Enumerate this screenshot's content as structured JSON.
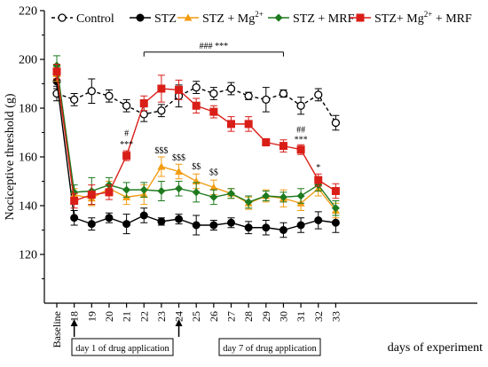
{
  "chart_data": {
    "type": "line",
    "title": "",
    "ylabel": "Nociceptive threshold (g)",
    "xlabel": "days of experiment",
    "ylim": [
      100,
      220
    ],
    "yticks": [
      120,
      140,
      160,
      180,
      200,
      220
    ],
    "categories": [
      "Baseline",
      "18",
      "19",
      "20",
      "21",
      "22",
      "23",
      "24",
      "25",
      "26",
      "27",
      "28",
      "29",
      "30",
      "31",
      "32",
      "33"
    ],
    "grid": false,
    "legend_position": "top",
    "legend": [
      {
        "name": "Control",
        "markup": "Control"
      },
      {
        "name": "STZ",
        "markup": "STZ"
      },
      {
        "name": "STZ + Mg2+",
        "markup": "STZ + Mg",
        "sup": "2+"
      },
      {
        "name": "STZ + MRF",
        "markup": "STZ + MRF"
      },
      {
        "name": "STZ+ Mg2+ + MRF",
        "markup": "STZ+ Mg",
        "sup": "2+",
        "tail": " + MRF"
      }
    ],
    "series": [
      {
        "name": "Control",
        "color": "#000000",
        "marker": "circle-open",
        "dashed": true,
        "values": [
          186,
          183.5,
          187,
          185,
          181,
          177.5,
          179,
          185,
          188.5,
          186,
          188,
          185,
          183.5,
          186,
          181,
          185.5,
          174
        ],
        "errors": [
          3,
          2.5,
          5,
          2.5,
          2.5,
          3,
          2.5,
          4.5,
          2.5,
          2.5,
          2.5,
          1.5,
          5,
          1.5,
          3.5,
          2.5,
          3
        ]
      },
      {
        "name": "STZ",
        "color": "#000000",
        "marker": "circle",
        "dashed": false,
        "values": [
          191,
          135,
          132.5,
          135,
          132.5,
          136,
          133.5,
          134.5,
          132,
          132,
          133,
          131,
          131,
          130,
          132,
          134,
          133
        ],
        "errors": [
          3,
          3,
          2.5,
          2,
          4,
          3,
          1.5,
          2,
          4,
          2,
          2,
          2.5,
          3,
          3,
          3,
          3.5,
          4
        ]
      },
      {
        "name": "STZ + Mg2+",
        "color": "#f39c12",
        "marker": "triangle",
        "dashed": false,
        "values": [
          194,
          144.5,
          143,
          147,
          143.5,
          144.5,
          156,
          154,
          150,
          147.5,
          145,
          141,
          144,
          143,
          141,
          147,
          138
        ],
        "errors": [
          3,
          2.5,
          3,
          3,
          3,
          4,
          4,
          3,
          3,
          3,
          2,
          2.5,
          2.5,
          3.5,
          3,
          3,
          3
        ]
      },
      {
        "name": "STZ + MRF",
        "color": "#1e7a1e",
        "marker": "diamond",
        "dashed": false,
        "values": [
          197.5,
          145.5,
          146,
          148.5,
          146.5,
          146.5,
          146,
          147,
          145.5,
          143.5,
          145,
          141.5,
          144,
          143.5,
          144,
          148.5,
          139
        ],
        "errors": [
          4,
          3,
          5.5,
          3,
          3,
          3,
          4,
          3,
          4,
          3,
          2,
          2.5,
          2,
          2,
          3,
          2.5,
          3
        ]
      },
      {
        "name": "STZ+ Mg2+ + MRF",
        "color": "#d91e18",
        "marker": "square",
        "dashed": false,
        "values": [
          195,
          142,
          144.5,
          145.5,
          160.5,
          182,
          188,
          187.5,
          181,
          178.5,
          173.5,
          173.5,
          166,
          164.5,
          163,
          150.5,
          146
        ],
        "errors": [
          3,
          3,
          4,
          3,
          2,
          3,
          5.5,
          4,
          3,
          2.5,
          3,
          3,
          1.5,
          2.5,
          2,
          2.5,
          3
        ]
      }
    ],
    "annotations": [
      {
        "text": "### ***",
        "type": "bracket",
        "from": "22",
        "to": "30",
        "y": 203
      },
      {
        "text": "#",
        "x": "21",
        "y": 168.5
      },
      {
        "text": "***",
        "x": "21",
        "y": 164
      },
      {
        "text": "$$$",
        "x": "23",
        "y": 161.5
      },
      {
        "text": "$$$",
        "x": "24",
        "y": 158.5
      },
      {
        "text": "$$",
        "x": "25",
        "y": 155
      },
      {
        "text": "$$",
        "x": "26",
        "y": 152.5
      },
      {
        "text": "##",
        "x": "31",
        "y": 170
      },
      {
        "text": "***",
        "x": "31",
        "y": 166
      },
      {
        "text": "*",
        "x": "32",
        "y": 154.5
      }
    ],
    "callouts": [
      {
        "text": "day 1 of drug application",
        "x": "18"
      },
      {
        "text": "day 7 of drug application",
        "x": "24"
      }
    ]
  }
}
